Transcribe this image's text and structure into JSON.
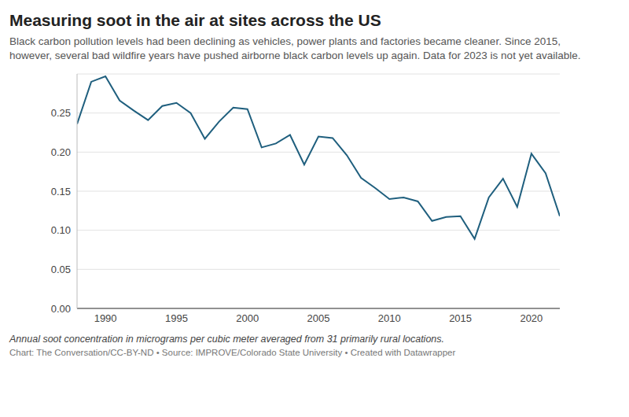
{
  "chart_data": {
    "type": "line",
    "title": "Measuring soot in the air at sites across the US",
    "subtitle": "Black carbon pollution levels had been declining as vehicles, power plants and factories became cleaner. Since 2015, however, several bad wildfire years have pushed airborne black carbon levels up again. Data for 2023 is not yet available.",
    "caption": "Annual soot concentration in micrograms per cubic meter averaged from 31 primarily rural locations.",
    "credit": "Chart: The Conversation/CC-BY-ND • Source: IMPROVE/Colorado State University • Created with Datawrapper",
    "x": [
      1988,
      1989,
      1990,
      1991,
      1992,
      1993,
      1994,
      1995,
      1996,
      1997,
      1998,
      1999,
      2000,
      2001,
      2002,
      2003,
      2004,
      2005,
      2006,
      2007,
      2008,
      2009,
      2010,
      2011,
      2012,
      2013,
      2014,
      2015,
      2016,
      2017,
      2018,
      2019,
      2020,
      2021,
      2022
    ],
    "values": [
      0.236,
      0.29,
      0.297,
      0.266,
      0.253,
      0.241,
      0.259,
      0.263,
      0.25,
      0.217,
      0.239,
      0.257,
      0.255,
      0.206,
      0.211,
      0.222,
      0.184,
      0.22,
      0.218,
      0.196,
      0.167,
      0.154,
      0.14,
      0.142,
      0.137,
      0.112,
      0.117,
      0.118,
      0.089,
      0.142,
      0.166,
      0.13,
      0.198,
      0.173,
      0.118
    ],
    "color": "#1f5f7e",
    "xlim": [
      1988,
      2022
    ],
    "xticks": [
      1990,
      1995,
      2000,
      2005,
      2010,
      2015,
      2020
    ],
    "ylim": [
      0,
      0.3
    ],
    "yticks": [
      {
        "value": 0,
        "label": "0.00"
      },
      0.05,
      {
        "value": 0.1,
        "label": "0.10"
      },
      0.15,
      {
        "value": 0.2,
        "label": "0.20"
      },
      0.25
    ],
    "grid": true
  }
}
